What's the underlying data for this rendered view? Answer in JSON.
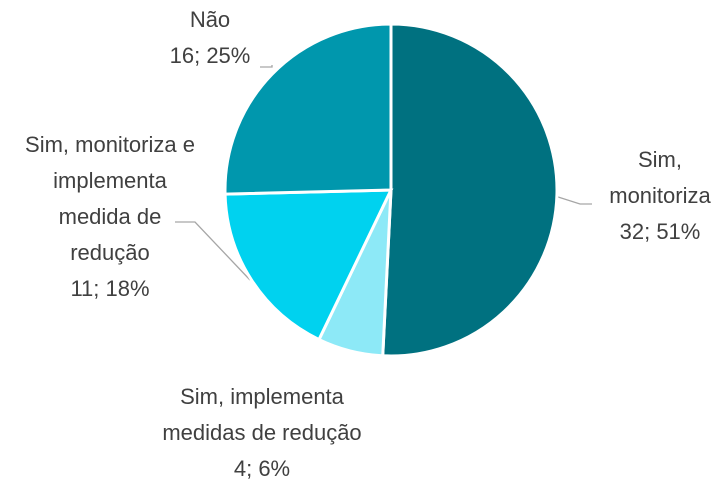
{
  "chart_data": {
    "type": "pie",
    "categories": [
      "Sim, monitoriza",
      "Sim, implementa medidas de redução",
      "Sim, monitoriza e implementa medida de redução",
      "Não"
    ],
    "values": [
      32,
      4,
      11,
      16
    ],
    "value_labels": [
      "32; 51%",
      "4; 6%",
      "11; 18%",
      "16; 25%"
    ],
    "colors": [
      "#007180",
      "#8de9f7",
      "#00d2ef",
      "#0097ad"
    ]
  }
}
